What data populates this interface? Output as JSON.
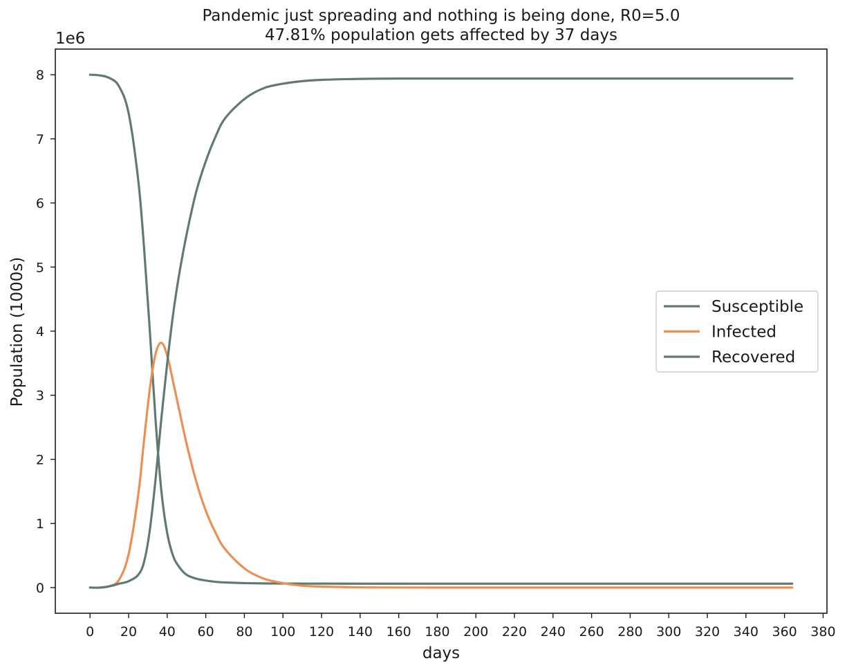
{
  "chart_data": {
    "type": "line",
    "title": "Pandemic just spreading and nothing is being done, R0=5.0",
    "subtitle": "47.81% population gets affected by 37 days",
    "xlabel": "days",
    "ylabel": "Population (1000s)",
    "y_offset_label": "1e6",
    "xlim": [
      -18,
      382
    ],
    "ylim": [
      -0.4,
      8.4
    ],
    "x_ticks": [
      0,
      20,
      40,
      60,
      80,
      100,
      120,
      140,
      160,
      180,
      200,
      220,
      240,
      260,
      280,
      300,
      320,
      340,
      360,
      380
    ],
    "y_ticks": [
      0,
      1,
      2,
      3,
      4,
      5,
      6,
      7,
      8
    ],
    "grid": false,
    "legend_position": "center-right",
    "x": [
      0,
      5,
      10,
      15,
      20,
      25,
      28,
      31,
      34,
      37,
      40,
      43,
      46,
      50,
      55,
      60,
      65,
      70,
      80,
      90,
      100,
      110,
      120,
      140,
      160,
      200,
      250,
      300,
      364
    ],
    "series": [
      {
        "name": "Susceptible",
        "color": "#5f7a70",
        "values": [
          8.0,
          7.99,
          7.95,
          7.82,
          7.4,
          6.35,
          5.3,
          4.0,
          2.6,
          1.5,
          0.85,
          0.5,
          0.33,
          0.2,
          0.14,
          0.11,
          0.09,
          0.08,
          0.07,
          0.065,
          0.063,
          0.062,
          0.062,
          0.061,
          0.061,
          0.061,
          0.061,
          0.061,
          0.061
        ]
      },
      {
        "name": "Infected",
        "color": "#ec8f52",
        "values": [
          0.0,
          0.0,
          0.02,
          0.12,
          0.52,
          1.45,
          2.3,
          3.1,
          3.65,
          3.82,
          3.62,
          3.22,
          2.8,
          2.25,
          1.66,
          1.2,
          0.86,
          0.6,
          0.3,
          0.14,
          0.07,
          0.03,
          0.015,
          0.004,
          0.001,
          0.0,
          0.0,
          0.0,
          0.0
        ]
      },
      {
        "name": "Recovered",
        "color": "#5f7a70",
        "values": [
          0.0,
          0.0,
          0.02,
          0.06,
          0.1,
          0.2,
          0.4,
          0.9,
          1.7,
          2.65,
          3.5,
          4.25,
          4.85,
          5.5,
          6.17,
          6.65,
          7.03,
          7.32,
          7.62,
          7.79,
          7.86,
          7.9,
          7.92,
          7.935,
          7.94,
          7.94,
          7.94,
          7.94,
          7.94
        ]
      }
    ]
  }
}
